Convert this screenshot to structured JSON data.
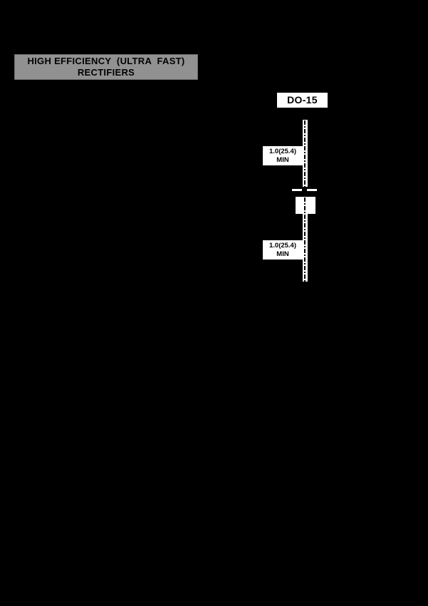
{
  "page": {
    "background_color": "#000000"
  },
  "header": {
    "line1": "HIGH EFFICIENCY  (ULTRA  FAST)",
    "line2": "RECTIFIERS",
    "bg_color": "#919191",
    "text_color": "#000000"
  },
  "package": {
    "label": "DO-15",
    "label_bg_color": "#ffffff"
  },
  "diagram": {
    "description": "DO-15 axial diode package outline, white line art on black background",
    "drawing_color": "#ffffff",
    "top_lead_dim": {
      "line1": "1.0(25.4)",
      "line2": "MIN"
    },
    "bottom_lead_dim": {
      "line1": "1.0(25.4)",
      "line2": "MIN"
    }
  }
}
